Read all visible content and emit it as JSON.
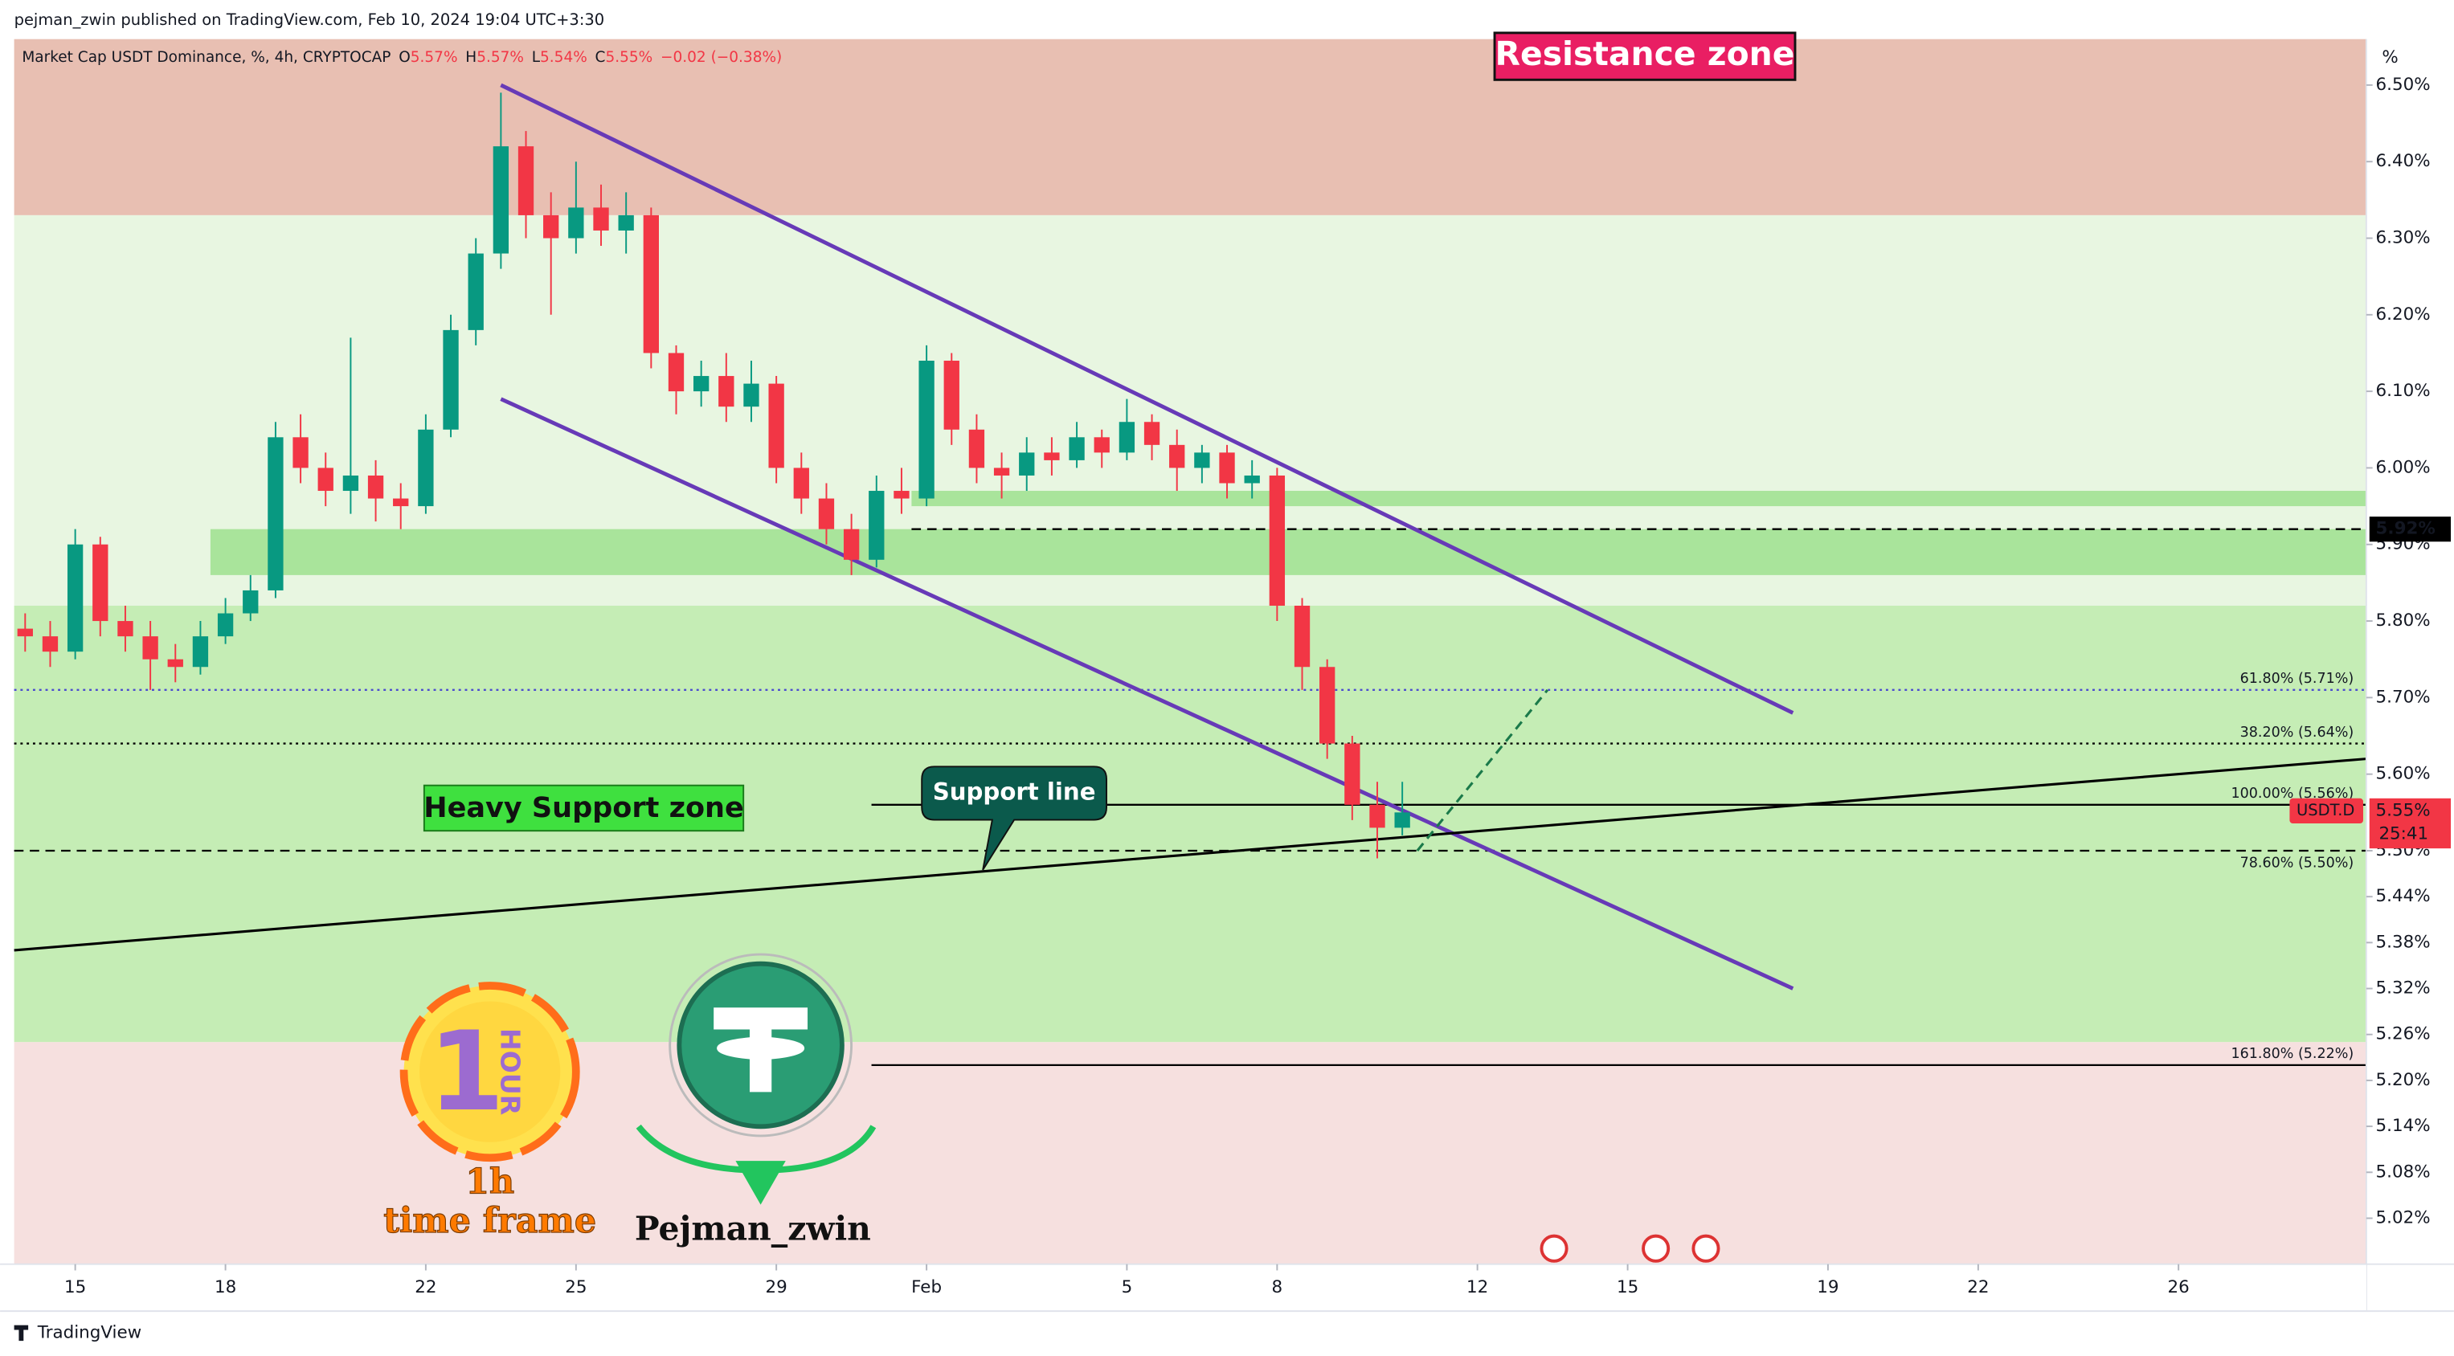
{
  "header": {
    "publisher": "pejman_zwin published on TradingView.com, Feb 10, 2024 19:04 UTC+3:30"
  },
  "chart_data": {
    "type": "candlestick",
    "title": "Market Cap USDT Dominance, %, 4h, CRYPTOCAP",
    "ohlc": [
      {
        "key": "O",
        "value": 5.57,
        "label": "5.57%"
      },
      {
        "key": "H",
        "value": 5.57,
        "label": "5.57%"
      },
      {
        "key": "L",
        "value": 5.54,
        "label": "5.54%"
      },
      {
        "key": "C",
        "value": 5.55,
        "label": "5.55%"
      }
    ],
    "change": "−0.02 (−0.38%)",
    "unit_label": "%",
    "up_color": "#089981",
    "down_color": "#f23645",
    "x": [
      -1,
      -0.5,
      0,
      0.5,
      1,
      1.5,
      2,
      2.5,
      3,
      3.5,
      4,
      4.5,
      5,
      5.5,
      6,
      6.5,
      7,
      7.5,
      8,
      8.5,
      9,
      9.5,
      10,
      10.5,
      11,
      11.5,
      12,
      12.5,
      13,
      13.5,
      14,
      14.5,
      15,
      15.5,
      16,
      16.5,
      17,
      17.5,
      18,
      18.5,
      19,
      19.5,
      20,
      20.5,
      21,
      21.5,
      22,
      22.5,
      23,
      23.5,
      24,
      24.5,
      25,
      25.5,
      26,
      26.5
    ],
    "open": [
      5.79,
      5.78,
      5.76,
      5.9,
      5.8,
      5.78,
      5.75,
      5.74,
      5.78,
      5.81,
      5.84,
      6.04,
      6.0,
      5.97,
      5.99,
      5.96,
      5.95,
      6.05,
      6.18,
      6.28,
      6.42,
      6.33,
      6.3,
      6.34,
      6.31,
      6.33,
      6.15,
      6.1,
      6.12,
      6.08,
      6.11,
      6.0,
      5.96,
      5.92,
      5.88,
      5.97,
      5.96,
      6.14,
      6.05,
      6.0,
      5.99,
      6.02,
      6.01,
      6.04,
      6.02,
      6.06,
      6.03,
      6.0,
      6.02,
      5.98,
      5.99,
      5.82,
      5.74,
      5.64,
      5.56,
      5.53
    ],
    "high": [
      5.81,
      5.8,
      5.92,
      5.91,
      5.82,
      5.8,
      5.77,
      5.8,
      5.83,
      5.86,
      6.06,
      6.07,
      6.02,
      6.17,
      6.01,
      5.98,
      6.07,
      6.2,
      6.3,
      6.49,
      6.44,
      6.36,
      6.4,
      6.37,
      6.36,
      6.34,
      6.16,
      6.14,
      6.15,
      6.14,
      6.12,
      6.02,
      5.98,
      5.94,
      5.99,
      6.0,
      6.16,
      6.15,
      6.07,
      6.02,
      6.04,
      6.04,
      6.06,
      6.05,
      6.09,
      6.07,
      6.05,
      6.03,
      6.03,
      6.01,
      6.0,
      5.83,
      5.75,
      5.65,
      5.59,
      5.59
    ],
    "low": [
      5.76,
      5.74,
      5.75,
      5.78,
      5.76,
      5.71,
      5.72,
      5.73,
      5.77,
      5.8,
      5.83,
      5.98,
      5.95,
      5.94,
      5.93,
      5.92,
      5.94,
      6.04,
      6.16,
      6.26,
      6.3,
      6.2,
      6.28,
      6.29,
      6.28,
      6.13,
      6.07,
      6.08,
      6.06,
      6.06,
      5.98,
      5.94,
      5.9,
      5.86,
      5.87,
      5.94,
      5.95,
      6.03,
      5.98,
      5.96,
      5.97,
      5.99,
      6.0,
      6.0,
      6.01,
      6.01,
      5.97,
      5.98,
      5.96,
      5.96,
      5.8,
      5.71,
      5.62,
      5.54,
      5.49,
      5.52
    ],
    "close": [
      5.78,
      5.76,
      5.9,
      5.8,
      5.78,
      5.75,
      5.74,
      5.78,
      5.81,
      5.84,
      6.04,
      6.0,
      5.97,
      5.99,
      5.96,
      5.95,
      6.05,
      6.18,
      6.28,
      6.42,
      6.33,
      6.3,
      6.34,
      6.31,
      6.33,
      6.15,
      6.1,
      6.12,
      6.08,
      6.11,
      6.0,
      5.96,
      5.92,
      5.88,
      5.97,
      5.96,
      6.14,
      6.05,
      6.0,
      5.99,
      6.02,
      6.01,
      6.04,
      6.02,
      6.06,
      6.03,
      6.0,
      6.02,
      5.98,
      5.99,
      5.82,
      5.74,
      5.64,
      5.56,
      5.53,
      5.55
    ],
    "xlim": [
      -1.22,
      45.75
    ],
    "xticks": [
      {
        "value": 0,
        "label": "15"
      },
      {
        "value": 3,
        "label": "18"
      },
      {
        "value": 7,
        "label": "22"
      },
      {
        "value": 10,
        "label": "25"
      },
      {
        "value": 14,
        "label": "29"
      },
      {
        "value": 17,
        "label": "Feb"
      },
      {
        "value": 21,
        "label": "5"
      },
      {
        "value": 24,
        "label": "8"
      },
      {
        "value": 28,
        "label": "12"
      },
      {
        "value": 31,
        "label": "15"
      },
      {
        "value": 35,
        "label": "19"
      },
      {
        "value": 38,
        "label": "22"
      },
      {
        "value": 42,
        "label": "26"
      }
    ],
    "ylim": [
      4.96,
      6.56
    ],
    "yticks": [
      {
        "value": 6.5,
        "label": "6.50%"
      },
      {
        "value": 6.4,
        "label": "6.40%"
      },
      {
        "value": 6.3,
        "label": "6.30%"
      },
      {
        "value": 6.2,
        "label": "6.20%"
      },
      {
        "value": 6.1,
        "label": "6.10%"
      },
      {
        "value": 6.0,
        "label": "6.00%"
      },
      {
        "value": 5.9,
        "label": "5.90%"
      },
      {
        "value": 5.8,
        "label": "5.80%"
      },
      {
        "value": 5.7,
        "label": "5.70%"
      },
      {
        "value": 5.6,
        "label": "5.60%"
      },
      {
        "value": 5.5,
        "label": "5.50%"
      },
      {
        "value": 5.44,
        "label": "5.44%"
      },
      {
        "value": 5.38,
        "label": "5.38%"
      },
      {
        "value": 5.32,
        "label": "5.32%"
      },
      {
        "value": 5.26,
        "label": "5.26%"
      },
      {
        "value": 5.2,
        "label": "5.20%"
      },
      {
        "value": 5.14,
        "label": "5.14%"
      },
      {
        "value": 5.08,
        "label": "5.08%"
      },
      {
        "value": 5.02,
        "label": "5.02%"
      }
    ],
    "zones": [
      {
        "from": 6.33,
        "to": 6.56,
        "color": "#e8bfb2"
      },
      {
        "from": 5.82,
        "to": 6.33,
        "color": "#e8f6e1"
      },
      {
        "from": 5.25,
        "to": 5.82,
        "color": "#c5edb5"
      },
      {
        "from": 4.96,
        "to": 5.25,
        "color": "#f6e0df"
      },
      {
        "from": 5.86,
        "to": 5.92,
        "start": 2.7,
        "color": "#a9e49b"
      },
      {
        "from": 5.95,
        "to": 5.97,
        "start": 16.7,
        "color": "#a9e49b"
      }
    ],
    "levels": [
      {
        "price": 5.92,
        "start": 16.7,
        "style": "dashed",
        "color": "#000000"
      },
      {
        "price": 5.71,
        "start": -1.22,
        "style": "dotted",
        "color": "#4b4bd0",
        "label": "61.80% (5.71%)"
      },
      {
        "price": 5.64,
        "start": -1.22,
        "style": "dotted",
        "color": "#000000",
        "label": "38.20% (5.64%)"
      },
      {
        "price": 5.56,
        "start": 15.9,
        "style": "solid",
        "color": "#000000",
        "label": "100.00% (5.56%)"
      },
      {
        "price": 5.5,
        "start": -1.22,
        "style": "dashed",
        "color": "#000000",
        "label": "78.60% (5.50%)"
      },
      {
        "price": 5.22,
        "start": 15.9,
        "style": "solid",
        "color": "#000000",
        "label": "161.80% (5.22%)"
      }
    ],
    "lines": [
      {
        "x": [
          8.5,
          34.3
        ],
        "y": [
          6.5,
          5.68
        ],
        "color": "#673ab7",
        "style": "solid"
      },
      {
        "x": [
          8.5,
          34.3
        ],
        "y": [
          6.09,
          5.32
        ],
        "color": "#673ab7",
        "style": "solid"
      },
      {
        "x": [
          -1.22,
          45.75
        ],
        "y": [
          5.37,
          5.62
        ],
        "color": "#000000",
        "style": "solid"
      },
      {
        "x": [
          26.8,
          29.4
        ],
        "y": [
          5.5,
          5.71
        ],
        "color": "#1b7a4a",
        "style": "dashed"
      }
    ],
    "price_marker": {
      "value": 5.92,
      "label": "5.92%"
    },
    "last_price": {
      "symbol": "USDT.D",
      "value": 5.55,
      "label": "5.55%",
      "countdown": "25:41",
      "color": "#f23645"
    },
    "annotations": {
      "resistance": "Resistance zone",
      "support_zone": "Heavy Support zone",
      "support_line": "Support line"
    }
  },
  "branding": {
    "hour_digit": "1",
    "hour_word": "HOUR",
    "timeframe_title": "1h",
    "timeframe_subtitle": "time frame",
    "author": "Pejman_zwin",
    "footer": "TradingView"
  }
}
